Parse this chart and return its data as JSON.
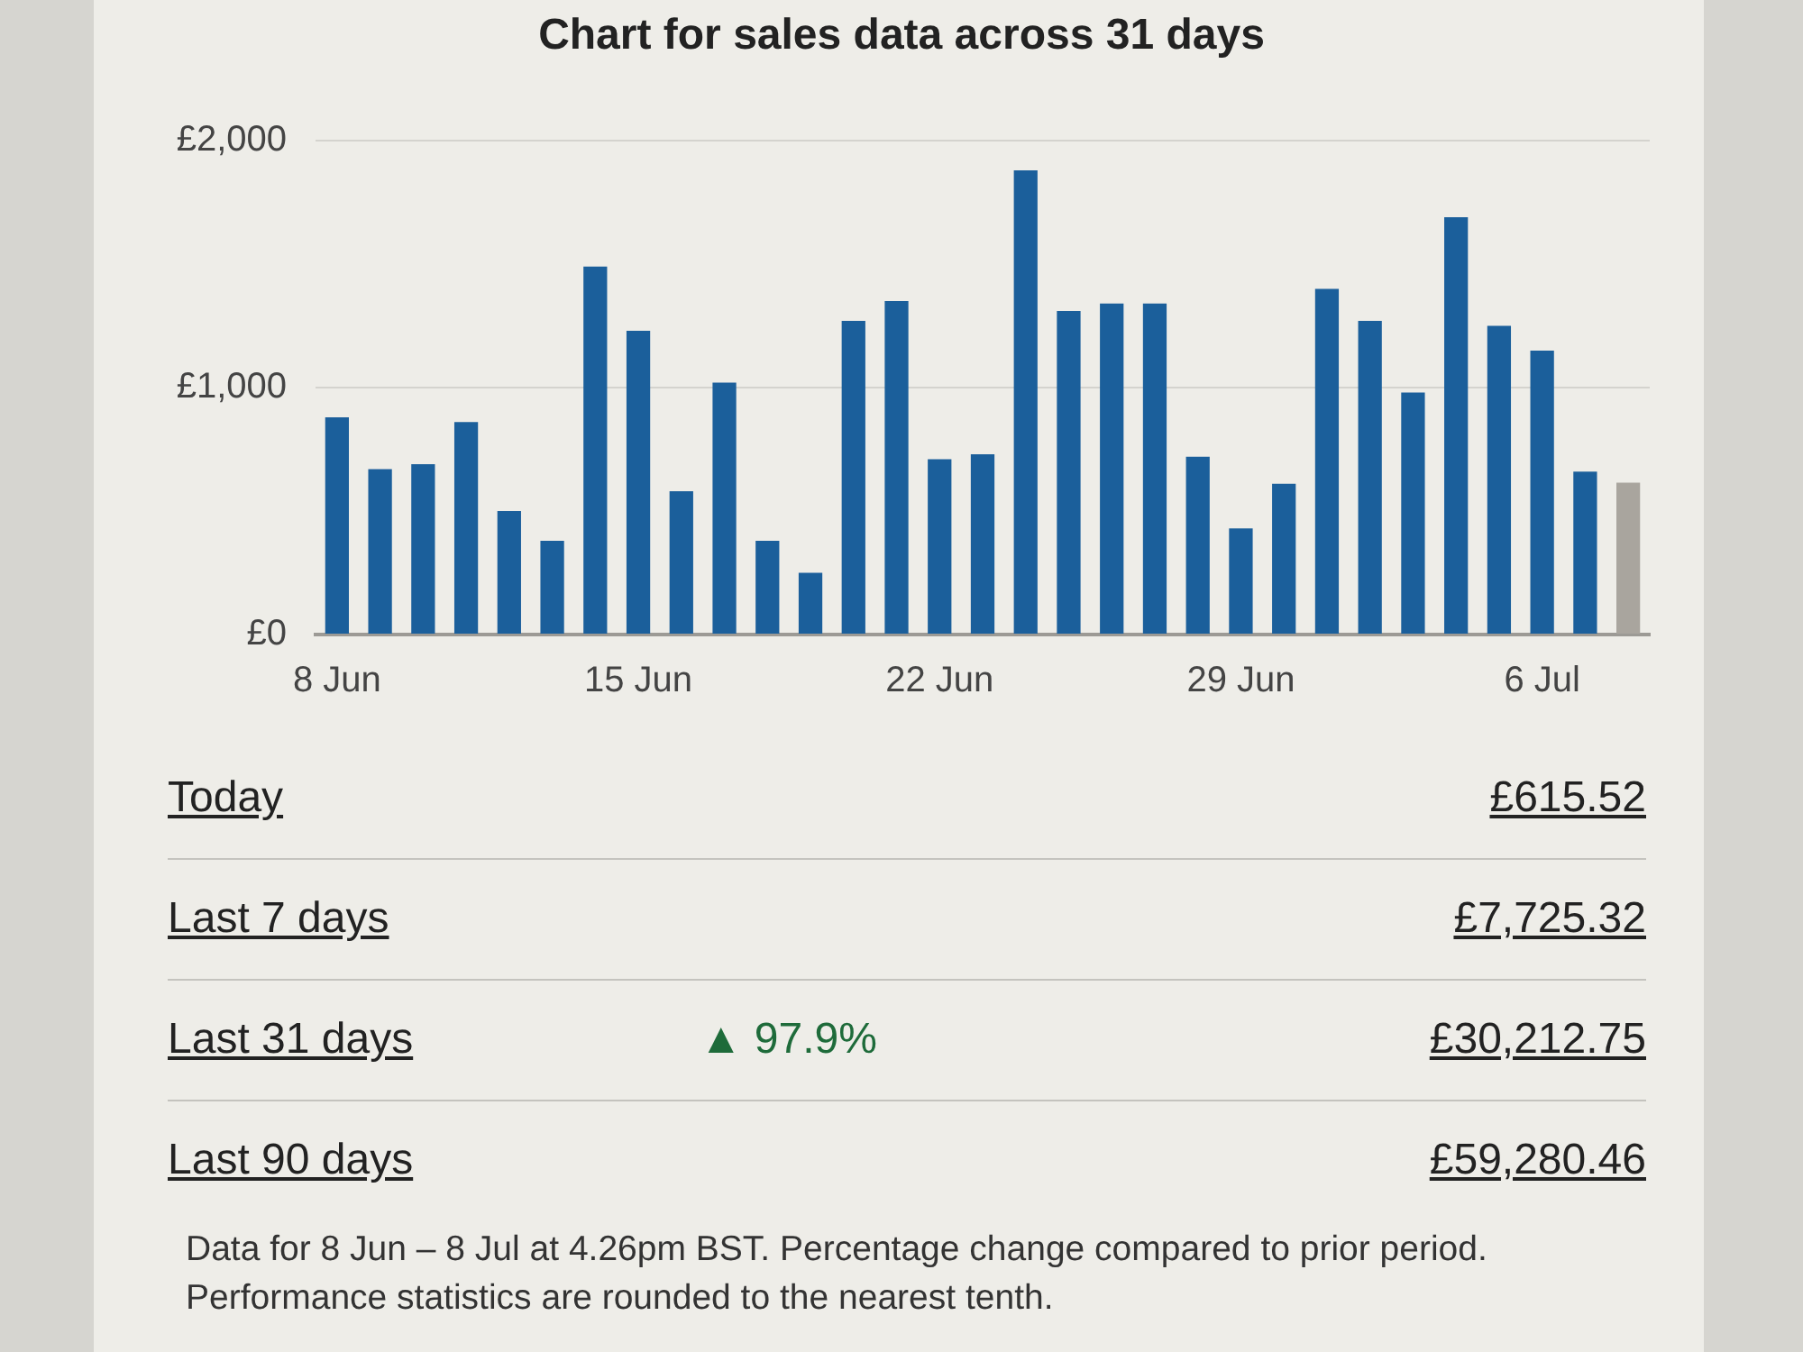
{
  "chart_data": {
    "type": "bar",
    "title": "Chart for sales data across 31 days",
    "categories": [
      "8 Jun",
      null,
      null,
      null,
      null,
      null,
      null,
      "15 Jun",
      null,
      null,
      null,
      null,
      null,
      null,
      "22 Jun",
      null,
      null,
      null,
      null,
      null,
      null,
      "29 Jun",
      null,
      null,
      null,
      null,
      null,
      null,
      "6 Jul",
      null,
      null
    ],
    "values": [
      880,
      670,
      690,
      860,
      500,
      380,
      1490,
      1230,
      580,
      1020,
      380,
      250,
      1270,
      1350,
      710,
      730,
      1880,
      1310,
      1340,
      1340,
      720,
      430,
      610,
      1400,
      1270,
      980,
      1690,
      1250,
      1150,
      660,
      615
    ],
    "colors": [
      "#1b5f9b",
      "#1b5f9b",
      "#1b5f9b",
      "#1b5f9b",
      "#1b5f9b",
      "#1b5f9b",
      "#1b5f9b",
      "#1b5f9b",
      "#1b5f9b",
      "#1b5f9b",
      "#1b5f9b",
      "#1b5f9b",
      "#1b5f9b",
      "#1b5f9b",
      "#1b5f9b",
      "#1b5f9b",
      "#1b5f9b",
      "#1b5f9b",
      "#1b5f9b",
      "#1b5f9b",
      "#1b5f9b",
      "#1b5f9b",
      "#1b5f9b",
      "#1b5f9b",
      "#1b5f9b",
      "#1b5f9b",
      "#1b5f9b",
      "#1b5f9b",
      "#1b5f9b",
      "#1b5f9b",
      "#a9a59e"
    ],
    "ylim": [
      0,
      2000
    ],
    "yticks": [
      {
        "value": 0,
        "label": "£0"
      },
      {
        "value": 1000,
        "label": "£1,000"
      },
      {
        "value": 2000,
        "label": "£2,000"
      }
    ],
    "grid": "y",
    "annotations": [
      "Today",
      "£615.52",
      "Last 7 days",
      "£7,725.32",
      "Last 31 days",
      "▲ 97.9%",
      "£30,212.75",
      "Last 90 days",
      "£59,280.46",
      "Data for 8 Jun – 8 Jul at 4.26pm BST. Percentage change compared to prior period. Performance statistics are rounded to the nearest tenth."
    ]
  }
}
